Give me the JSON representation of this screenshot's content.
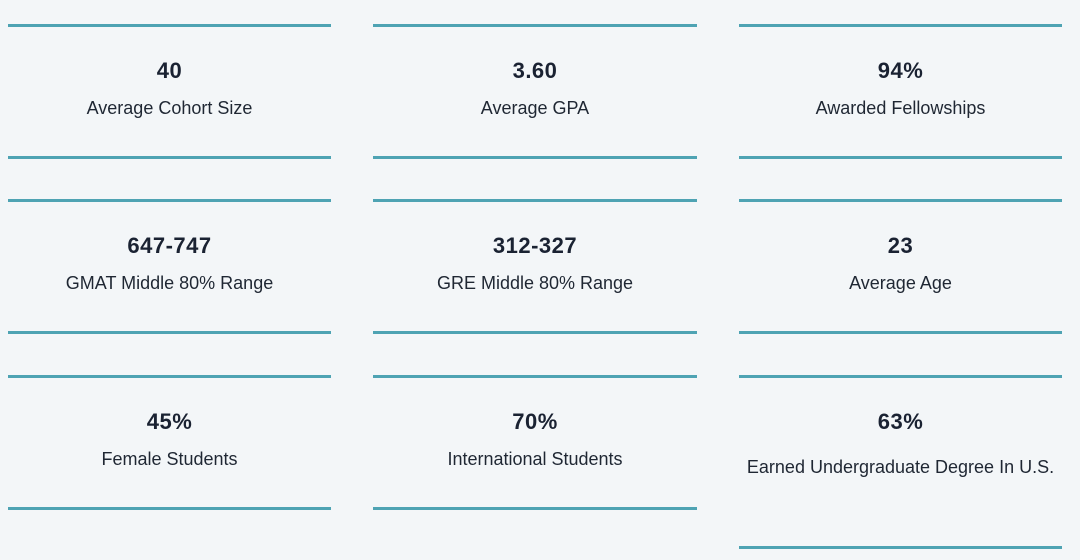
{
  "stats": [
    {
      "value": "40",
      "label": "Average Cohort Size"
    },
    {
      "value": "3.60",
      "label": "Average GPA"
    },
    {
      "value": "94%",
      "label": "Awarded Fellowships"
    },
    {
      "value": "647-747",
      "label": "GMAT Middle 80% Range"
    },
    {
      "value": "312-327",
      "label": "GRE Middle 80% Range"
    },
    {
      "value": "23",
      "label": "Average Age"
    },
    {
      "value": "45%",
      "label": "Female Students"
    },
    {
      "value": "70%",
      "label": "International Students"
    },
    {
      "value": "63%",
      "label": "Earned Undergraduate Degree In U.S."
    }
  ],
  "colors": {
    "accent_line": "#4ea3b3",
    "background": "#f3f6f8",
    "text": "#1a2232"
  }
}
